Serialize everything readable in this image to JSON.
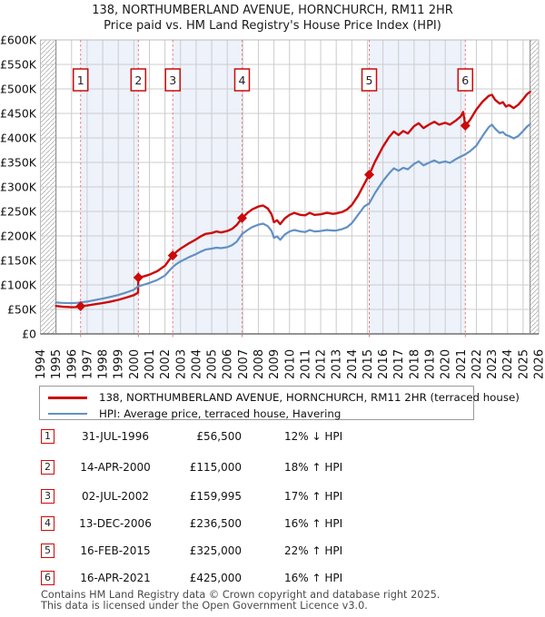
{
  "title": {
    "main": "138, NORTHUMBERLAND AVENUE, HORNCHURCH, RM11 2HR",
    "sub": "Price paid vs. HM Land Registry's House Price Index (HPI)"
  },
  "legend": {
    "items": [
      {
        "label": "138, NORTHUMBERLAND AVENUE, HORNCHURCH, RM11 2HR (terraced house)",
        "color": "#cc0a0a"
      },
      {
        "label": "HPI: Average price, terraced house, Havering",
        "color": "#6290c3"
      }
    ]
  },
  "chart_data": {
    "type": "line",
    "x_range": [
      1994,
      2026
    ],
    "y_range": [
      0,
      600000
    ],
    "x_ticks": [
      1994,
      1995,
      1996,
      1997,
      1998,
      1999,
      2000,
      2001,
      2002,
      2003,
      2004,
      2005,
      2006,
      2007,
      2008,
      2009,
      2010,
      2011,
      2012,
      2013,
      2014,
      2015,
      2016,
      2017,
      2018,
      2019,
      2020,
      2021,
      2022,
      2023,
      2024,
      2025,
      2026
    ],
    "y_tick_values": [
      0,
      50,
      100,
      150,
      200,
      250,
      300,
      350,
      400,
      450,
      500,
      550,
      600
    ],
    "y_tick_labels": [
      "£0",
      "£50K",
      "£100K",
      "£150K",
      "£200K",
      "£250K",
      "£300K",
      "£350K",
      "£400K",
      "£450K",
      "£500K",
      "£550K",
      "£600K"
    ],
    "grid": true,
    "legend_position": "below",
    "data_start": 1995.0,
    "data_end": 2025.45,
    "shade_bands": [
      [
        1996.58,
        2000.29
      ],
      [
        2002.5,
        2006.95
      ],
      [
        2015.12,
        2021.29
      ]
    ],
    "colors": {
      "property": "#cc0a0a",
      "hpi": "#6290c3",
      "sale_line": "#f07878",
      "band": "#edf2fb",
      "grid": "#cccccc",
      "hatch": "#b0b0b0",
      "badge_border": "#cc0a0a"
    },
    "sales": [
      {
        "n": 1,
        "x": 1996.58,
        "price_k": 56.5
      },
      {
        "n": 2,
        "x": 2000.29,
        "price_k": 115
      },
      {
        "n": 3,
        "x": 2002.5,
        "price_k": 160
      },
      {
        "n": 4,
        "x": 2006.95,
        "price_k": 236.5
      },
      {
        "n": 5,
        "x": 2015.12,
        "price_k": 325
      },
      {
        "n": 6,
        "x": 2021.29,
        "price_k": 425
      }
    ],
    "series": [
      {
        "name": "138, NORTHUMBERLAND AVENUE, HORNCHURCH, RM11 2HR (terraced house)",
        "color": "#cc0a0a",
        "width": 2.4,
        "points": [
          [
            1995.0,
            57
          ],
          [
            1995.4,
            55.5
          ],
          [
            1996.0,
            54.5
          ],
          [
            1996.3,
            54.8
          ],
          [
            1996.58,
            56.5
          ],
          [
            1997.0,
            58
          ],
          [
            1997.5,
            60.5
          ],
          [
            1998.0,
            63
          ],
          [
            1998.5,
            66
          ],
          [
            1999.0,
            69.5
          ],
          [
            1999.5,
            74
          ],
          [
            2000.0,
            79
          ],
          [
            2000.27,
            84
          ],
          [
            2000.29,
            115
          ],
          [
            2000.6,
            117
          ],
          [
            2001.0,
            121
          ],
          [
            2001.5,
            128
          ],
          [
            2002.0,
            139
          ],
          [
            2002.25,
            150
          ],
          [
            2002.5,
            160
          ],
          [
            2002.75,
            168
          ],
          [
            2003.0,
            174
          ],
          [
            2003.5,
            184
          ],
          [
            2004.0,
            193
          ],
          [
            2004.3,
            199
          ],
          [
            2004.6,
            204
          ],
          [
            2005.0,
            206
          ],
          [
            2005.3,
            209
          ],
          [
            2005.6,
            207
          ],
          [
            2006.0,
            210
          ],
          [
            2006.3,
            214
          ],
          [
            2006.6,
            222
          ],
          [
            2006.95,
            236.5
          ],
          [
            2007.3,
            247
          ],
          [
            2007.6,
            254
          ],
          [
            2008.0,
            260
          ],
          [
            2008.3,
            262
          ],
          [
            2008.6,
            256
          ],
          [
            2008.85,
            244
          ],
          [
            2009.0,
            228
          ],
          [
            2009.2,
            232
          ],
          [
            2009.4,
            224
          ],
          [
            2009.7,
            236
          ],
          [
            2010.0,
            243
          ],
          [
            2010.3,
            247
          ],
          [
            2010.7,
            243
          ],
          [
            2011.0,
            242
          ],
          [
            2011.3,
            247
          ],
          [
            2011.6,
            243
          ],
          [
            2012.0,
            244
          ],
          [
            2012.4,
            247
          ],
          [
            2012.8,
            245
          ],
          [
            2013.0,
            246
          ],
          [
            2013.4,
            249
          ],
          [
            2013.7,
            254
          ],
          [
            2014.0,
            263
          ],
          [
            2014.4,
            282
          ],
          [
            2014.8,
            306
          ],
          [
            2015.12,
            325
          ],
          [
            2015.5,
            352
          ],
          [
            2016.0,
            382
          ],
          [
            2016.4,
            402
          ],
          [
            2016.7,
            413
          ],
          [
            2017.0,
            406
          ],
          [
            2017.3,
            414
          ],
          [
            2017.6,
            409
          ],
          [
            2018.0,
            424
          ],
          [
            2018.3,
            430
          ],
          [
            2018.6,
            420
          ],
          [
            2019.0,
            428
          ],
          [
            2019.3,
            433
          ],
          [
            2019.6,
            427
          ],
          [
            2020.0,
            431
          ],
          [
            2020.3,
            427
          ],
          [
            2020.7,
            436
          ],
          [
            2021.0,
            444
          ],
          [
            2021.15,
            453
          ],
          [
            2021.29,
            425
          ],
          [
            2021.6,
            437
          ],
          [
            2022.0,
            458
          ],
          [
            2022.4,
            474
          ],
          [
            2022.8,
            486
          ],
          [
            2023.0,
            488
          ],
          [
            2023.2,
            478
          ],
          [
            2023.5,
            470
          ],
          [
            2023.7,
            473
          ],
          [
            2023.9,
            464
          ],
          [
            2024.1,
            467
          ],
          [
            2024.4,
            461
          ],
          [
            2024.7,
            468
          ],
          [
            2025.0,
            479
          ],
          [
            2025.25,
            489
          ],
          [
            2025.45,
            494
          ]
        ]
      },
      {
        "name": "HPI: Average price, terraced house, Havering",
        "color": "#6290c3",
        "width": 2.2,
        "points": [
          [
            1995.0,
            64
          ],
          [
            1995.4,
            63.3
          ],
          [
            1996.0,
            62.8
          ],
          [
            1996.3,
            63.3
          ],
          [
            1996.58,
            64.2
          ],
          [
            1997.0,
            66
          ],
          [
            1997.5,
            69
          ],
          [
            1998.0,
            72
          ],
          [
            1998.5,
            75.5
          ],
          [
            1999.0,
            79.5
          ],
          [
            1999.5,
            84.5
          ],
          [
            2000.0,
            90
          ],
          [
            2000.29,
            97.5
          ],
          [
            2000.6,
            100
          ],
          [
            2001.0,
            104
          ],
          [
            2001.5,
            110
          ],
          [
            2002.0,
            119
          ],
          [
            2002.25,
            128
          ],
          [
            2002.5,
            136.7
          ],
          [
            2002.75,
            143
          ],
          [
            2003.0,
            148
          ],
          [
            2003.5,
            156
          ],
          [
            2004.0,
            163
          ],
          [
            2004.3,
            168
          ],
          [
            2004.6,
            172
          ],
          [
            2005.0,
            174
          ],
          [
            2005.3,
            176
          ],
          [
            2005.6,
            175
          ],
          [
            2006.0,
            177
          ],
          [
            2006.3,
            181
          ],
          [
            2006.6,
            188
          ],
          [
            2006.95,
            203.9
          ],
          [
            2007.3,
            212
          ],
          [
            2007.6,
            218
          ],
          [
            2008.0,
            223
          ],
          [
            2008.3,
            225
          ],
          [
            2008.6,
            220
          ],
          [
            2008.85,
            210
          ],
          [
            2009.0,
            196
          ],
          [
            2009.2,
            199
          ],
          [
            2009.4,
            192
          ],
          [
            2009.7,
            203
          ],
          [
            2010.0,
            209
          ],
          [
            2010.3,
            212
          ],
          [
            2010.7,
            209
          ],
          [
            2011.0,
            208
          ],
          [
            2011.3,
            212
          ],
          [
            2011.6,
            209
          ],
          [
            2012.0,
            210
          ],
          [
            2012.4,
            212
          ],
          [
            2012.8,
            211
          ],
          [
            2013.0,
            211
          ],
          [
            2013.4,
            214
          ],
          [
            2013.7,
            218
          ],
          [
            2014.0,
            226
          ],
          [
            2014.4,
            243
          ],
          [
            2014.8,
            260
          ],
          [
            2015.12,
            266.4
          ],
          [
            2015.5,
            288
          ],
          [
            2016.0,
            312
          ],
          [
            2016.4,
            328
          ],
          [
            2016.7,
            338
          ],
          [
            2017.0,
            333
          ],
          [
            2017.3,
            339
          ],
          [
            2017.6,
            336
          ],
          [
            2018.0,
            347
          ],
          [
            2018.3,
            352
          ],
          [
            2018.6,
            344
          ],
          [
            2019.0,
            350
          ],
          [
            2019.3,
            354
          ],
          [
            2019.6,
            349
          ],
          [
            2020.0,
            352
          ],
          [
            2020.3,
            349
          ],
          [
            2020.7,
            357
          ],
          [
            2021.0,
            362
          ],
          [
            2021.29,
            366.4
          ],
          [
            2021.6,
            373
          ],
          [
            2022.0,
            384
          ],
          [
            2022.4,
            404
          ],
          [
            2022.8,
            422
          ],
          [
            2023.0,
            427
          ],
          [
            2023.2,
            419
          ],
          [
            2023.5,
            410
          ],
          [
            2023.7,
            412
          ],
          [
            2023.9,
            406
          ],
          [
            2024.1,
            404
          ],
          [
            2024.4,
            399
          ],
          [
            2024.7,
            404
          ],
          [
            2025.0,
            414
          ],
          [
            2025.25,
            423
          ],
          [
            2025.45,
            428
          ]
        ]
      }
    ]
  },
  "table": {
    "rows": [
      {
        "num": "1",
        "date": "31-JUL-1996",
        "price": "£56,500",
        "hpi": "12% ↓ HPI"
      },
      {
        "num": "2",
        "date": "14-APR-2000",
        "price": "£115,000",
        "hpi": "18% ↑ HPI"
      },
      {
        "num": "3",
        "date": "02-JUL-2002",
        "price": "£159,995",
        "hpi": "17% ↑ HPI"
      },
      {
        "num": "4",
        "date": "13-DEC-2006",
        "price": "£236,500",
        "hpi": "16% ↑ HPI"
      },
      {
        "num": "5",
        "date": "16-FEB-2015",
        "price": "£325,000",
        "hpi": "22% ↑ HPI"
      },
      {
        "num": "6",
        "date": "16-APR-2021",
        "price": "£425,000",
        "hpi": "16% ↑ HPI"
      }
    ]
  },
  "footer": {
    "line1": "Contains HM Land Registry data © Crown copyright and database right 2025.",
    "line2": "This data is licensed under the Open Government Licence v3.0."
  }
}
